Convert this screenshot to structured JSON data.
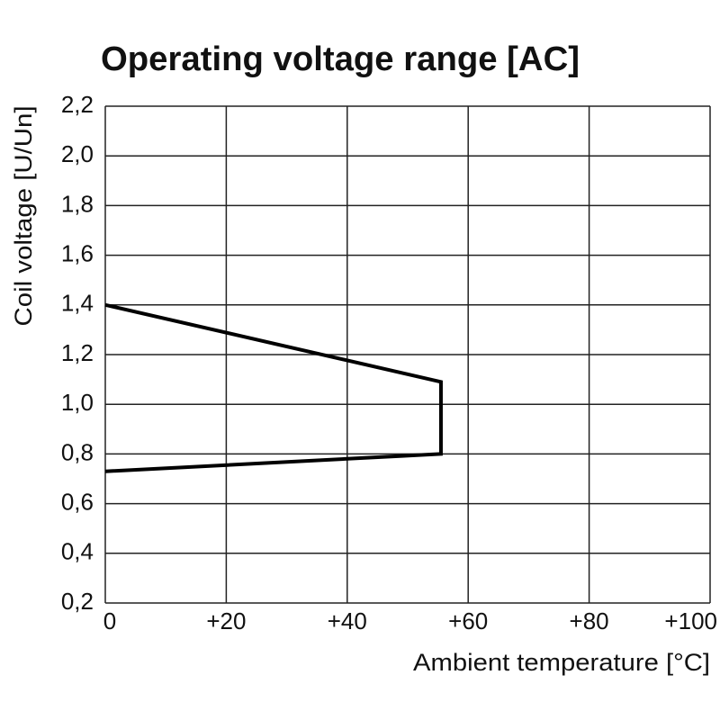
{
  "chart_data": {
    "type": "line",
    "title": "Operating voltage range [AC]",
    "x_label": "Ambient temperature [°C]",
    "y_label": "Coil voltage [U/Un]",
    "x": [
      0,
      55.5,
      55.5,
      0
    ],
    "series": [
      {
        "color": "#000000",
        "values": [
          1.4,
          1.09,
          0.8,
          0.73
        ]
      }
    ],
    "xlim": [
      0,
      100
    ],
    "xticks": [
      0,
      {
        "value": 20,
        "label": "+20"
      },
      {
        "value": 40,
        "label": "+40"
      },
      {
        "value": 60,
        "label": "+60"
      },
      {
        "value": 80,
        "label": "+80"
      },
      {
        "value": 100,
        "label": "+100"
      }
    ],
    "ylim": [
      0.2,
      2.2
    ],
    "yticks": [
      {
        "value": 0.2,
        "label": "0,2"
      },
      {
        "value": 0.4,
        "label": "0,4"
      },
      {
        "value": 0.6,
        "label": "0,6"
      },
      {
        "value": 0.8,
        "label": "0,8"
      },
      {
        "value": 1.0,
        "label": "1,0"
      },
      {
        "value": 1.2,
        "label": "1,2"
      },
      {
        "value": 1.4,
        "label": "1,4"
      },
      {
        "value": 1.6,
        "label": "1,6"
      },
      {
        "value": 1.8,
        "label": "1,8"
      },
      {
        "value": 2.0,
        "label": "2,0"
      },
      {
        "value": 2.2,
        "label": "2,2"
      }
    ],
    "grid": true
  }
}
